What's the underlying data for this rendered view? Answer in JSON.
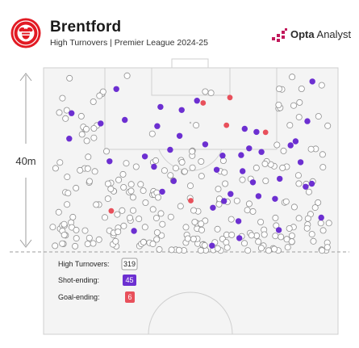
{
  "header": {
    "title": "Brentford",
    "subtitle": "High Turnovers | Premier League 2024-25",
    "brand_bold": "Opta",
    "brand_light": " Analyst",
    "brand_icon": "opta-bars-icon",
    "crest_icon": "brentford-bee-crest-icon"
  },
  "measure": {
    "label": "40m"
  },
  "legend": [
    {
      "label": "High Turnovers:",
      "value": "319",
      "style": "outline"
    },
    {
      "label": "Shot-ending:",
      "value": "45",
      "style": "purple"
    },
    {
      "label": "Goal-ending:",
      "value": "6",
      "style": "red"
    }
  ],
  "colors": {
    "pitch": "#f4f4f4",
    "line": "#cfcfcf",
    "purple": "#6c2fd1",
    "red": "#e8505b",
    "crest_red": "#e21a23",
    "brand_magenta": "#c2185b"
  },
  "chart_data": {
    "type": "scatter",
    "x_range": [
      0,
      100
    ],
    "y_range_m": [
      0,
      40
    ],
    "series": [
      {
        "name": "Shot-ending",
        "points": [
          [
            57.2,
            1.4
          ],
          [
            66.5,
            3.1
          ],
          [
            30.7,
            4.7
          ],
          [
            79.9,
            4.9
          ],
          [
            66.2,
            6.9
          ],
          [
            94.3,
            7.7
          ],
          [
            57.5,
            9.9
          ],
          [
            61.3,
            11.4
          ],
          [
            78.6,
            11.9
          ],
          [
            73.0,
            12.5
          ],
          [
            63.5,
            13.0
          ],
          [
            40.3,
            13.5
          ],
          [
            89.0,
            14.6
          ],
          [
            91.1,
            15.3
          ],
          [
            71.1,
            15.6
          ],
          [
            44.2,
            15.9
          ],
          [
            80.2,
            16.4
          ],
          [
            67.6,
            18.1
          ],
          [
            58.8,
            18.4
          ],
          [
            37.5,
            19.1
          ],
          [
            87.3,
            20.1
          ],
          [
            22.4,
            20.3
          ],
          [
            34.4,
            21.4
          ],
          [
            60.8,
            21.6
          ],
          [
            67.1,
            21.7
          ],
          [
            74.0,
            22.4
          ],
          [
            43.0,
            22.9
          ],
          [
            69.8,
            23.2
          ],
          [
            83.9,
            23.9
          ],
          [
            54.9,
            24.1
          ],
          [
            85.6,
            24.8
          ],
          [
            8.7,
            25.4
          ],
          [
            46.2,
            26.0
          ],
          [
            72.3,
            26.9
          ],
          [
            68.3,
            27.6
          ],
          [
            38.6,
            28.2
          ],
          [
            19.4,
            28.8
          ],
          [
            89.6,
            29.3
          ],
          [
            27.6,
            29.6
          ],
          [
            9.5,
            31.1
          ],
          [
            46.9,
            31.8
          ],
          [
            39.7,
            32.5
          ],
          [
            52.1,
            33.9
          ],
          [
            24.7,
            36.5
          ],
          [
            91.3,
            38.2
          ]
        ]
      },
      {
        "name": "Goal-ending",
        "points": [
          [
            63.3,
            34.6
          ],
          [
            54.2,
            33.4
          ],
          [
            62.1,
            28.4
          ],
          [
            75.4,
            26.8
          ],
          [
            50.0,
            11.5
          ],
          [
            23.0,
            9.2
          ]
        ]
      }
    ]
  }
}
